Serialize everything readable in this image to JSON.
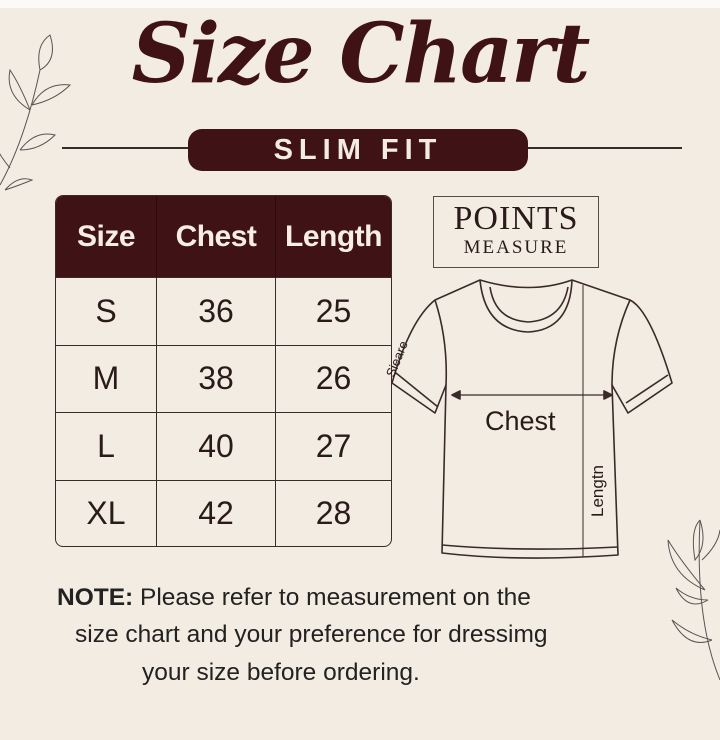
{
  "title": "Size Chart",
  "subtitle": "SLIM FIT",
  "colors": {
    "background": "#f3ece2",
    "accent": "#3f1216"
  },
  "table": {
    "headers": [
      "Size",
      "Chest",
      "Length"
    ],
    "rows": [
      [
        "S",
        "36",
        "25"
      ],
      [
        "M",
        "38",
        "26"
      ],
      [
        "L",
        "40",
        "27"
      ],
      [
        "XL",
        "42",
        "28"
      ]
    ]
  },
  "points_box": {
    "line1": "POINTS",
    "line2": "MEASURE"
  },
  "diagram": {
    "sleeve_label": "Sieare",
    "chest_label": "Chest",
    "length_label": "Lengtn"
  },
  "note": {
    "label": "NOTE:",
    "line1": " Please refer to measurement on the",
    "line2": "size chart and your preference for dressimg",
    "line3": "your size before ordering."
  },
  "decorations": [
    "leaf-branch-icon",
    "leaf-branch-icon"
  ]
}
